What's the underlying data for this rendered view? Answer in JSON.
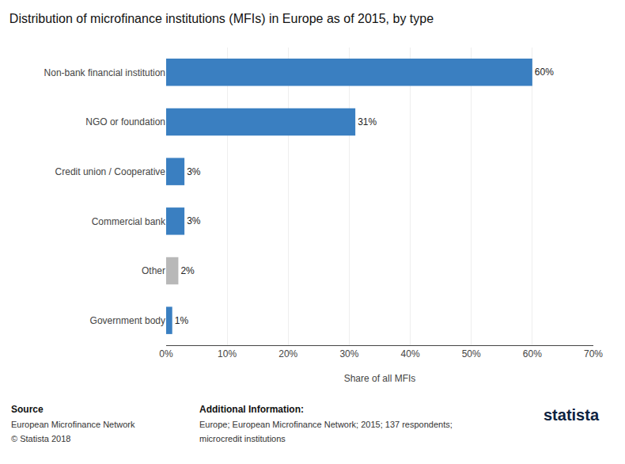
{
  "chart_data": {
    "type": "bar",
    "orientation": "horizontal",
    "title": "Distribution of microfinance institutions (MFIs) in Europe as of 2015, by type",
    "categories": [
      "Non-bank financial institution",
      "NGO or foundation",
      "Credit union / Cooperative",
      "Commercial bank",
      "Other",
      "Government body"
    ],
    "values": [
      60,
      31,
      3,
      3,
      2,
      1
    ],
    "value_labels": [
      "60%",
      "31%",
      "3%",
      "3%",
      "2%",
      "1%"
    ],
    "data_labels": true,
    "colors": [
      "#3a7fc1",
      "#3a7fc1",
      "#3a7fc1",
      "#3a7fc1",
      "#b8b8b8",
      "#3a7fc1"
    ],
    "xlabel": "Share of all MFIs",
    "xlim": [
      0,
      70
    ],
    "xticks": [
      {
        "value": 0,
        "label": "0%"
      },
      {
        "value": 10,
        "label": "10%"
      },
      {
        "value": 20,
        "label": "20%"
      },
      {
        "value": 30,
        "label": "30%"
      },
      {
        "value": 40,
        "label": "40%"
      },
      {
        "value": 50,
        "label": "50%"
      },
      {
        "value": 60,
        "label": "60%"
      },
      {
        "value": 70,
        "label": "70%"
      }
    ],
    "grid": true,
    "annotations": [
      "Source",
      "European Microfinance Network",
      "© Statista 2018",
      "Additional Information:",
      "Europe; European Microfinance Network; 2015; 137 respondents;",
      "microcredit institutions",
      "statista"
    ]
  }
}
